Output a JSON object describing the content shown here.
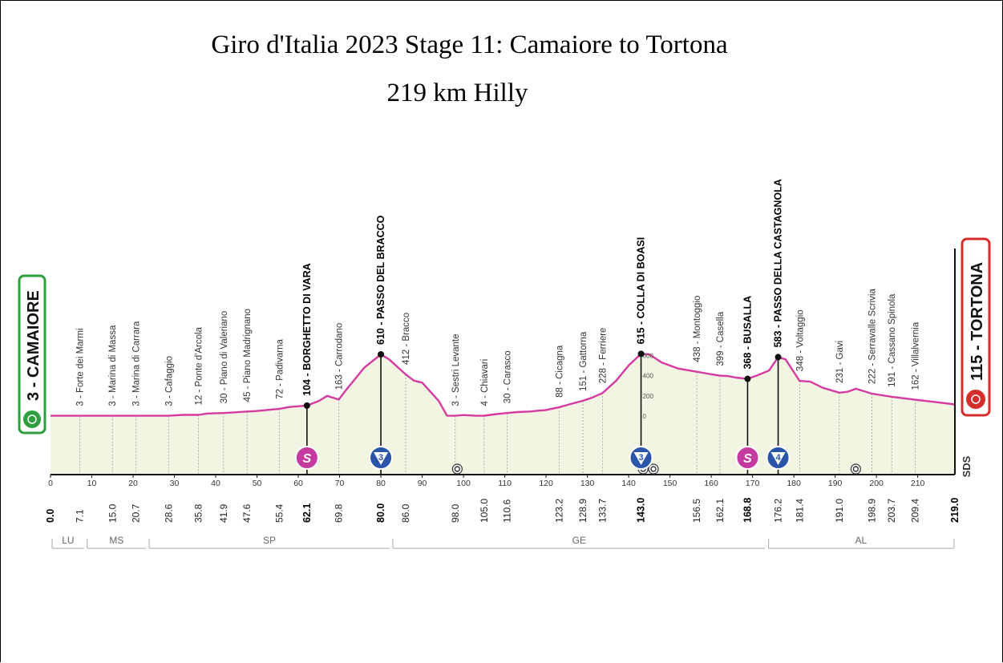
{
  "page": {
    "title": "Giro d'Italia 2023 Stage 11:  Camaiore to Tortona",
    "subtitle": "219 km Hilly"
  },
  "colors": {
    "profile_line": "#d63aa0",
    "profile_fill": "#f3f5e3",
    "start_box": "#2e9e3e",
    "finish_box": "#d62d2d",
    "sprint_badge": "#c43a9e",
    "kom_badge": "#2a55a8"
  },
  "icons": {
    "start": "cyclist-icon",
    "finish": "cyclist-icon",
    "sprint": "sprint-s-badge-icon",
    "kom": "kom-triangle-badge-icon",
    "feed": "feed-zone-icon"
  },
  "start_label": "3 - CAMAIORE",
  "finish_label": "115 - TORTONA",
  "brand": "SDS",
  "chart_data": {
    "type": "area",
    "x_unit": "km",
    "y_unit": "m",
    "xlim": [
      0,
      219
    ],
    "elevation_ticks": [
      "0",
      "200",
      "400",
      "600"
    ],
    "x_ticks": [
      "0",
      "10",
      "20",
      "30",
      "40",
      "50",
      "60",
      "70",
      "80",
      "90",
      "100",
      "110",
      "120",
      "130",
      "140",
      "150",
      "160",
      "170",
      "180",
      "190",
      "200",
      "210"
    ],
    "profile": [
      [
        0,
        3
      ],
      [
        7.1,
        3
      ],
      [
        15,
        3
      ],
      [
        20.7,
        3
      ],
      [
        28.6,
        3
      ],
      [
        32,
        12
      ],
      [
        35.8,
        12
      ],
      [
        38,
        25
      ],
      [
        41.9,
        30
      ],
      [
        44,
        35
      ],
      [
        47.6,
        45
      ],
      [
        50,
        50
      ],
      [
        55.4,
        72
      ],
      [
        58,
        90
      ],
      [
        62.1,
        104
      ],
      [
        65,
        150
      ],
      [
        67,
        200
      ],
      [
        69.8,
        163
      ],
      [
        72,
        280
      ],
      [
        76,
        480
      ],
      [
        80,
        610
      ],
      [
        82,
        560
      ],
      [
        86,
        412
      ],
      [
        88,
        350
      ],
      [
        90,
        330
      ],
      [
        94,
        150
      ],
      [
        96,
        5
      ],
      [
        98,
        3
      ],
      [
        100,
        10
      ],
      [
        103,
        3
      ],
      [
        105,
        4
      ],
      [
        108,
        20
      ],
      [
        110.6,
        30
      ],
      [
        113,
        40
      ],
      [
        116,
        45
      ],
      [
        120,
        60
      ],
      [
        123.2,
        88
      ],
      [
        126,
        120
      ],
      [
        128.9,
        151
      ],
      [
        131,
        180
      ],
      [
        133.7,
        228
      ],
      [
        137,
        350
      ],
      [
        140,
        500
      ],
      [
        143,
        615
      ],
      [
        145,
        610
      ],
      [
        148,
        530
      ],
      [
        152,
        470
      ],
      [
        156.5,
        438
      ],
      [
        159,
        420
      ],
      [
        162.1,
        399
      ],
      [
        164,
        395
      ],
      [
        166,
        380
      ],
      [
        168.8,
        368
      ],
      [
        171,
        400
      ],
      [
        174,
        450
      ],
      [
        176.2,
        583
      ],
      [
        178,
        560
      ],
      [
        181.4,
        348
      ],
      [
        184,
        340
      ],
      [
        187,
        280
      ],
      [
        191,
        231
      ],
      [
        193,
        240
      ],
      [
        195,
        270
      ],
      [
        198.9,
        222
      ],
      [
        203.7,
        191
      ],
      [
        209.4,
        162
      ],
      [
        214,
        140
      ],
      [
        219,
        115
      ]
    ],
    "km_marks": [
      "0.0",
      "7.1",
      "15.0",
      "20.7",
      "28.6",
      "35.8",
      "41.9",
      "47.6",
      "55.4",
      "62.1",
      "69.8",
      "80.0",
      "86.0",
      "98.0",
      "105.0",
      "110.6",
      "123.2",
      "128.9",
      "133.7",
      "143.0",
      "156.5",
      "162.1",
      "168.8",
      "176.2",
      "181.4",
      "191.0",
      "198.9",
      "203.7",
      "209.4",
      "219.0"
    ],
    "km_marks_bold": [
      "0.0",
      "62.1",
      "80.0",
      "143.0",
      "168.8",
      "219.0"
    ],
    "places": [
      {
        "km": 7.1,
        "label": "3 - Forte dei Marmi",
        "bold": false
      },
      {
        "km": 15.0,
        "label": "3 - Marina di Massa",
        "bold": false
      },
      {
        "km": 20.7,
        "label": "3 - Marina di Carrara",
        "bold": false
      },
      {
        "km": 28.6,
        "label": "3 - Cafaggio",
        "bold": false
      },
      {
        "km": 35.8,
        "label": "12 - Ponte d'Arcola",
        "bold": false
      },
      {
        "km": 41.9,
        "label": "30 - Piano di Valeriano",
        "bold": false
      },
      {
        "km": 47.6,
        "label": "45 - Piano Madrignano",
        "bold": false
      },
      {
        "km": 55.4,
        "label": "72 - Padivarna",
        "bold": false
      },
      {
        "km": 62.1,
        "label": "104 - BORGHETTO DI VARA",
        "bold": true
      },
      {
        "km": 69.8,
        "label": "163 - Carrodano",
        "bold": false
      },
      {
        "km": 80.0,
        "label": "610 - PASSO DEL BRACCO",
        "bold": true
      },
      {
        "km": 86.0,
        "label": "412 - Bracco",
        "bold": false
      },
      {
        "km": 98.0,
        "label": "3 - Sestri Levante",
        "bold": false
      },
      {
        "km": 105.0,
        "label": "4 - Chiavari",
        "bold": false
      },
      {
        "km": 110.6,
        "label": "30 - Carasco",
        "bold": false
      },
      {
        "km": 123.2,
        "label": "88 - Cicagna",
        "bold": false
      },
      {
        "km": 128.9,
        "label": "151 - Gattorna",
        "bold": false
      },
      {
        "km": 133.7,
        "label": "228 - Ferriere",
        "bold": false
      },
      {
        "km": 143.0,
        "label": "615 - COLLA DI BOASI",
        "bold": true
      },
      {
        "km": 156.5,
        "label": "438 - Montoggio",
        "bold": false
      },
      {
        "km": 162.1,
        "label": "399 - Casella",
        "bold": false
      },
      {
        "km": 168.8,
        "label": "368 - BUSALLA",
        "bold": true
      },
      {
        "km": 176.2,
        "label": "583 - PASSO DELLA CASTAGNOLA",
        "bold": true
      },
      {
        "km": 181.4,
        "label": "348 - Voltaggio",
        "bold": false
      },
      {
        "km": 191.0,
        "label": "231 - Gavi",
        "bold": false
      },
      {
        "km": 198.9,
        "label": "222 - Serravalle Scrivia",
        "bold": false
      },
      {
        "km": 203.7,
        "label": "191 - Cassano Spinola",
        "bold": false
      },
      {
        "km": 209.4,
        "label": "162 - Villalvernia",
        "bold": false
      }
    ],
    "badges": [
      {
        "km": 62.1,
        "type": "sprint",
        "text": "S"
      },
      {
        "km": 80.0,
        "type": "kom",
        "text": "3"
      },
      {
        "km": 143.0,
        "type": "kom",
        "text": "3"
      },
      {
        "km": 168.8,
        "type": "sprint",
        "text": "S"
      },
      {
        "km": 176.2,
        "type": "kom",
        "text": "4"
      }
    ],
    "feed_zones": [
      98.5,
      143.5,
      146,
      195
    ],
    "regions": [
      {
        "label": "LU",
        "from": 0,
        "to": 8.5
      },
      {
        "label": "MS",
        "from": 8.5,
        "to": 23.5
      },
      {
        "label": "SP",
        "from": 23.5,
        "to": 82.5
      },
      {
        "label": "GE",
        "from": 82.5,
        "to": 173.5
      },
      {
        "label": "AL",
        "from": 173.5,
        "to": 219
      }
    ]
  }
}
